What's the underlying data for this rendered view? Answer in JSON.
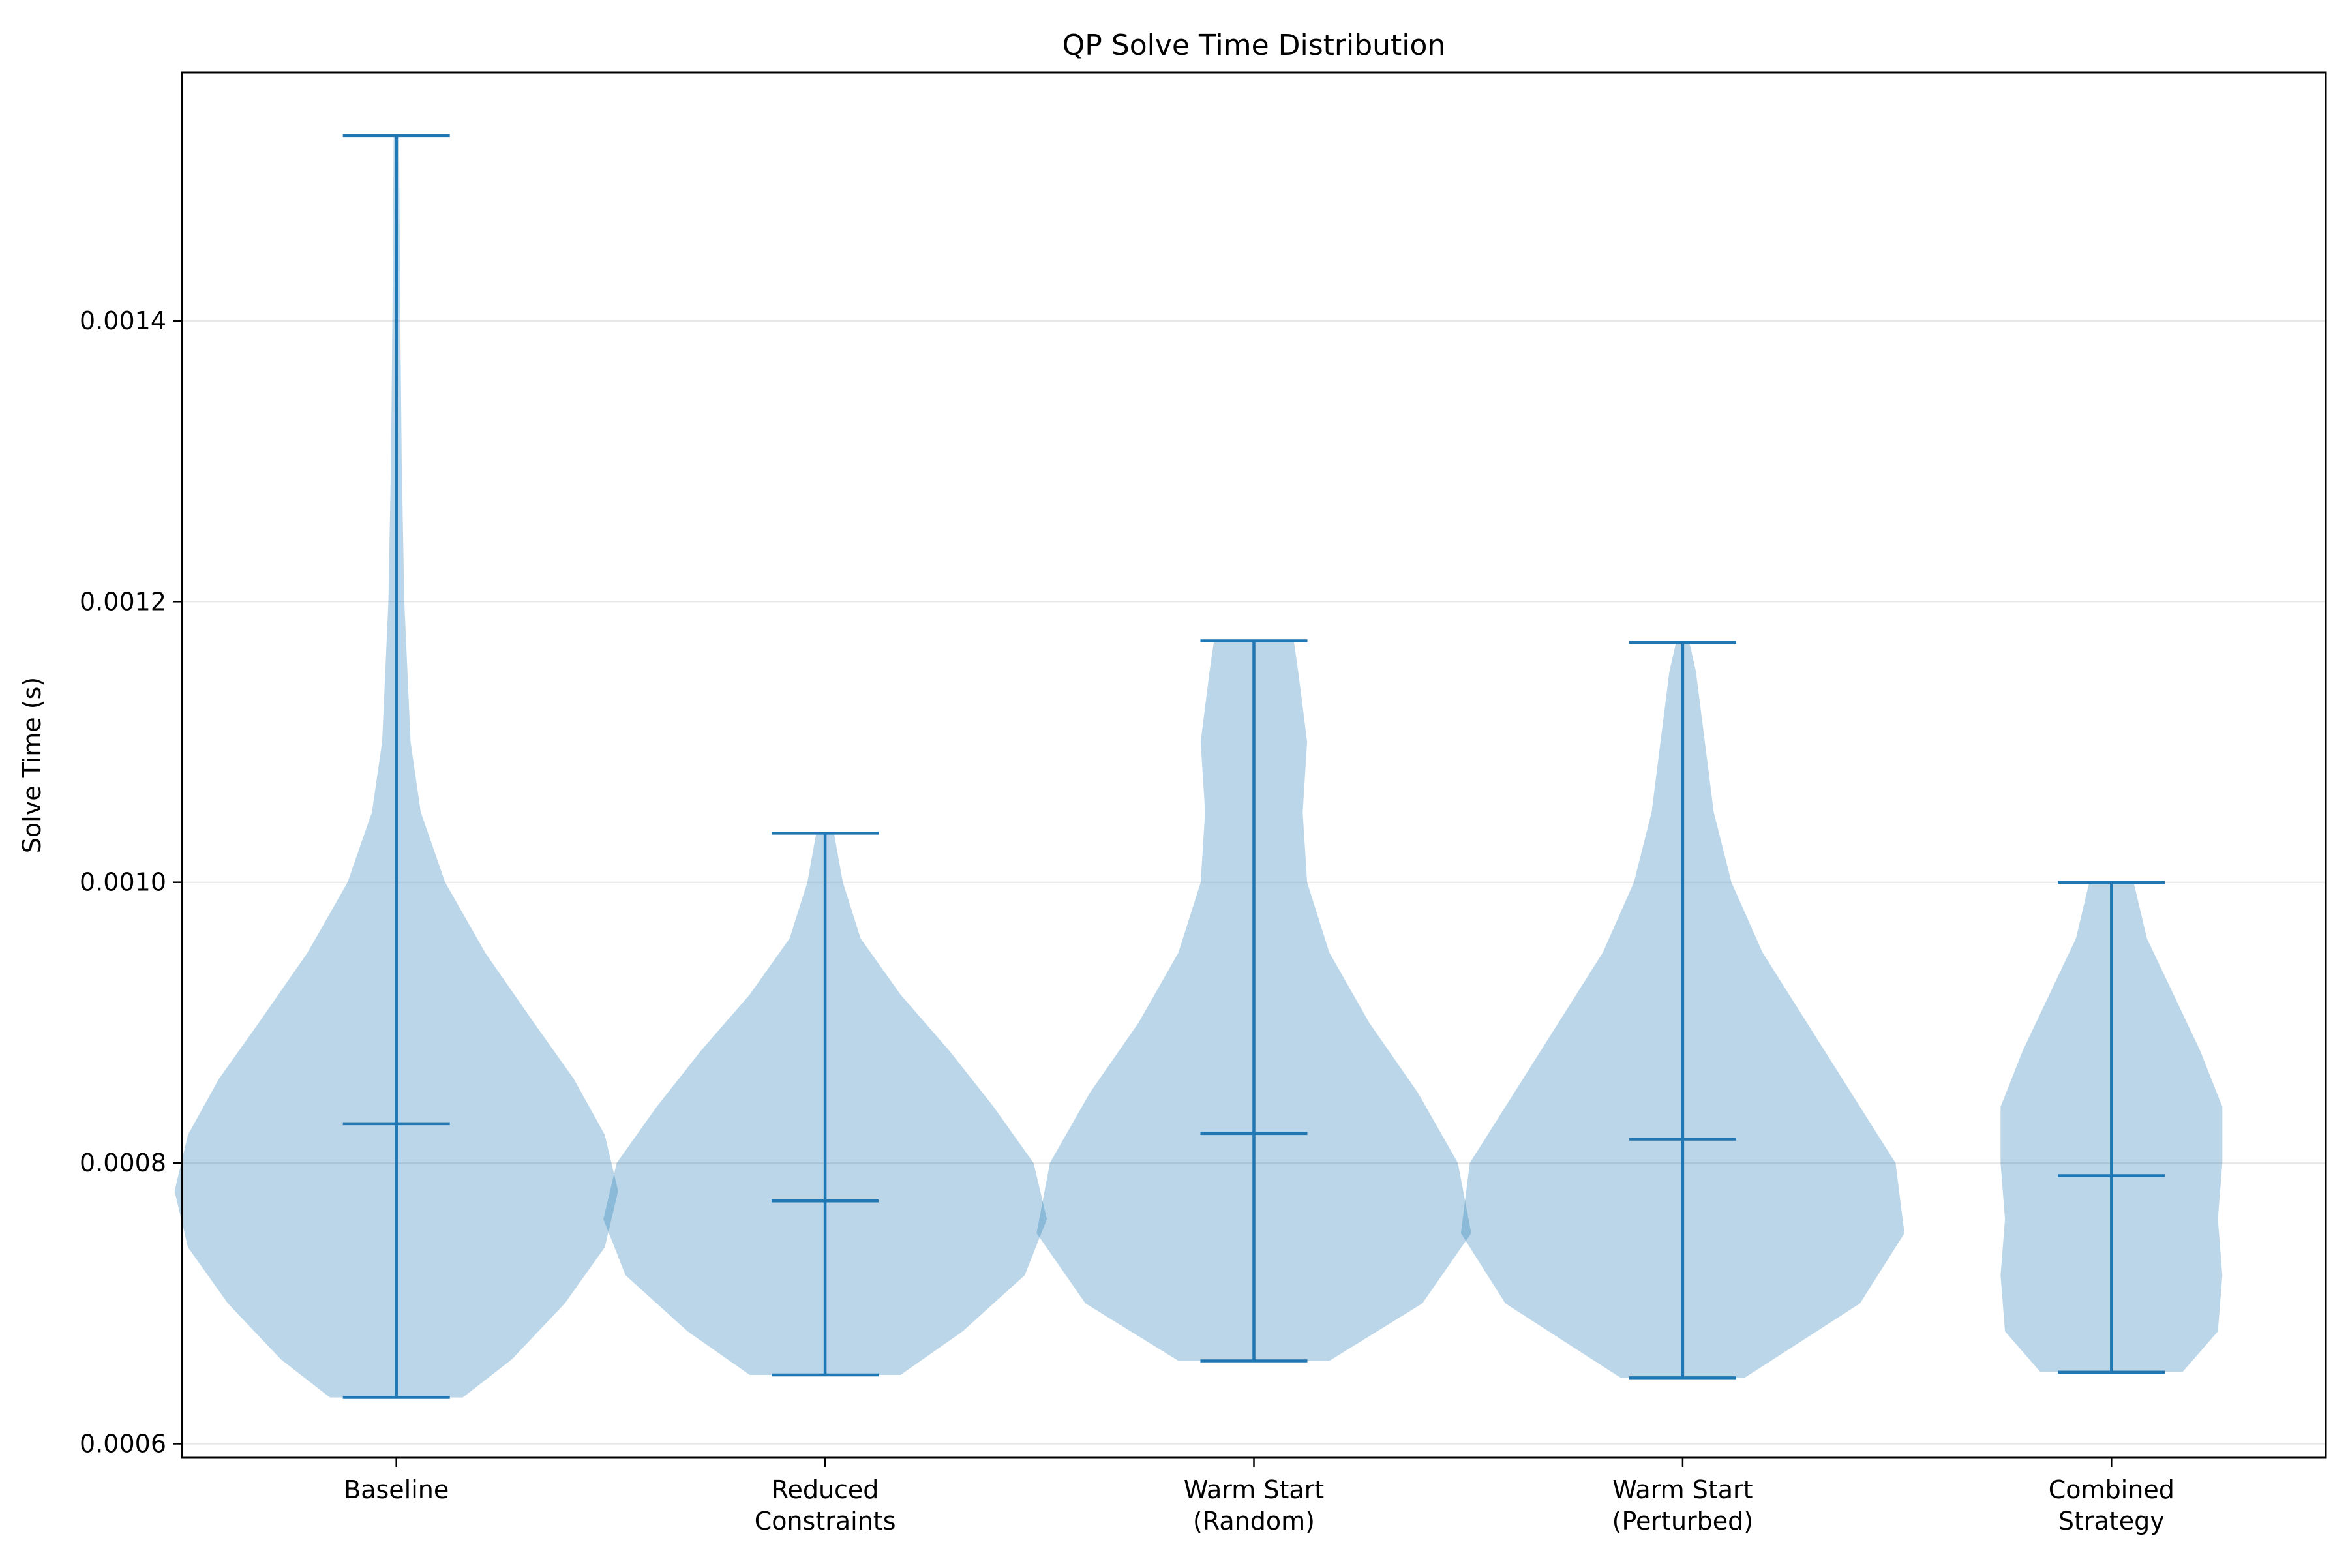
{
  "chart_data": {
    "type": "violin",
    "title": "QP Solve Time Distribution",
    "xlabel": "",
    "ylabel": "Solve Time (s)",
    "ylim": [
      0.00059,
      0.001577
    ],
    "yticks": [
      0.0006,
      0.0008,
      0.001,
      0.0012,
      0.0014
    ],
    "ytick_labels": [
      "0.0006",
      "0.0008",
      "0.0010",
      "0.0012",
      "0.0014"
    ],
    "grid": "y",
    "colors": {
      "body": "#1f77b4",
      "body_opacity": 0.3,
      "lines": "#1f77b4",
      "grid": "#e6e6e6",
      "axes": "#000000"
    },
    "categories": [
      {
        "label_lines": [
          "Baseline"
        ]
      },
      {
        "label_lines": [
          "Reduced",
          "Constraints"
        ]
      },
      {
        "label_lines": [
          "Warm Start",
          "(Random)"
        ]
      },
      {
        "label_lines": [
          "Warm Start",
          "(Perturbed)"
        ]
      },
      {
        "label_lines": [
          "Combined",
          "Strategy"
        ]
      }
    ],
    "series": [
      {
        "category": 0,
        "min": 0.000633,
        "max": 0.001532,
        "median": 0.000828,
        "density": [
          [
            0.000633,
            0.15
          ],
          [
            0.00066,
            0.26
          ],
          [
            0.0007,
            0.38
          ],
          [
            0.00074,
            0.47
          ],
          [
            0.00078,
            0.5
          ],
          [
            0.00082,
            0.47
          ],
          [
            0.00086,
            0.4
          ],
          [
            0.0009,
            0.31
          ],
          [
            0.00095,
            0.2
          ],
          [
            0.001,
            0.11
          ],
          [
            0.00105,
            0.055
          ],
          [
            0.0011,
            0.032
          ],
          [
            0.0012,
            0.018
          ],
          [
            0.0013,
            0.012
          ],
          [
            0.0014,
            0.009
          ],
          [
            0.001532,
            0.006
          ]
        ]
      },
      {
        "category": 1,
        "min": 0.000649,
        "max": 0.001035,
        "median": 0.000773,
        "density": [
          [
            0.000649,
            0.17
          ],
          [
            0.00068,
            0.31
          ],
          [
            0.00072,
            0.45
          ],
          [
            0.00076,
            0.5
          ],
          [
            0.0008,
            0.47
          ],
          [
            0.00084,
            0.38
          ],
          [
            0.00088,
            0.28
          ],
          [
            0.00092,
            0.17
          ],
          [
            0.00096,
            0.08
          ],
          [
            0.001,
            0.04
          ],
          [
            0.001035,
            0.02
          ]
        ]
      },
      {
        "category": 2,
        "min": 0.000659,
        "max": 0.001172,
        "median": 0.000821,
        "density": [
          [
            0.000659,
            0.17
          ],
          [
            0.0007,
            0.38
          ],
          [
            0.00075,
            0.49
          ],
          [
            0.0008,
            0.46
          ],
          [
            0.00085,
            0.37
          ],
          [
            0.0009,
            0.26
          ],
          [
            0.00095,
            0.17
          ],
          [
            0.001,
            0.12
          ],
          [
            0.00105,
            0.11
          ],
          [
            0.0011,
            0.12
          ],
          [
            0.00115,
            0.1
          ],
          [
            0.001172,
            0.09
          ]
        ]
      },
      {
        "category": 3,
        "min": 0.000647,
        "max": 0.001171,
        "median": 0.000817,
        "density": [
          [
            0.000647,
            0.14
          ],
          [
            0.0007,
            0.4
          ],
          [
            0.00075,
            0.5
          ],
          [
            0.0008,
            0.48
          ],
          [
            0.00085,
            0.38
          ],
          [
            0.0009,
            0.28
          ],
          [
            0.00095,
            0.18
          ],
          [
            0.001,
            0.11
          ],
          [
            0.00105,
            0.07
          ],
          [
            0.0011,
            0.05
          ],
          [
            0.00115,
            0.03
          ],
          [
            0.001171,
            0.015
          ]
        ]
      },
      {
        "category": 4,
        "min": 0.000651,
        "max": 0.001,
        "median": 0.000791,
        "density": [
          [
            0.000651,
            0.16
          ],
          [
            0.00068,
            0.24
          ],
          [
            0.00072,
            0.25
          ],
          [
            0.00076,
            0.24
          ],
          [
            0.0008,
            0.25
          ],
          [
            0.00084,
            0.25
          ],
          [
            0.00088,
            0.2
          ],
          [
            0.00092,
            0.14
          ],
          [
            0.00096,
            0.08
          ],
          [
            0.001,
            0.05
          ]
        ]
      }
    ]
  }
}
